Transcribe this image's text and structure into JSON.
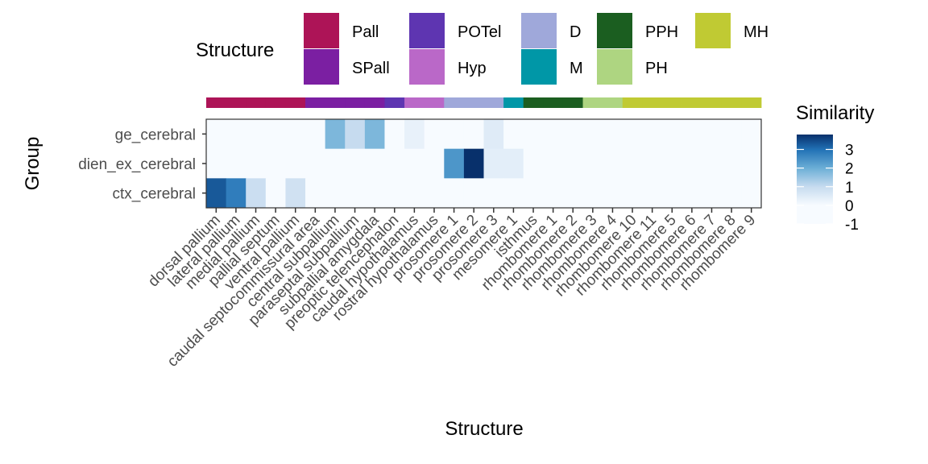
{
  "chart_data": {
    "type": "heatmap",
    "title": "",
    "xlabel": "Structure",
    "ylabel": "Group",
    "x_categories": [
      "dorsal pallium",
      "lateral pallium",
      "medial pallium",
      "pallial septum",
      "ventral pallium",
      "caudal septocommissural area",
      "central subpallium",
      "paraseptal subpallium",
      "subpallial amygdala",
      "preoptic telencephalon",
      "caudal hypothalamus",
      "rostral hypothalamus",
      "prosomere 1",
      "prosomere 2",
      "prosomere 3",
      "mesomere 1",
      "isthmus",
      "rhombomere 1",
      "rhombomere 2",
      "rhombomere 3",
      "rhombomere 4",
      "rhombomere 10",
      "rhombomere 11",
      "rhombomere 5",
      "rhombomere 6",
      "rhombomere 7",
      "rhombomere 8",
      "rhombomere 9"
    ],
    "y_categories": [
      "ge_cerebral",
      "dien_ex_cerebral",
      "ctx_cerebral"
    ],
    "values": [
      [
        0.0,
        -0.5,
        -0.8,
        -0.8,
        -0.2,
        -0.9,
        1.8,
        1.0,
        1.8,
        -0.3,
        0.3,
        -0.9,
        -0.9,
        -0.9,
        0.5,
        -1.0,
        -0.9,
        -0.8,
        -0.7,
        -0.6,
        -0.3,
        -0.7,
        -0.8,
        -0.4,
        -0.6,
        -0.6,
        -0.3,
        -0.3
      ],
      [
        -0.7,
        -0.8,
        -0.2,
        -0.6,
        -0.8,
        -0.4,
        -0.9,
        -0.5,
        -0.8,
        -0.5,
        -0.5,
        -1.0,
        2.4,
        3.8,
        0.4,
        0.4,
        -0.9,
        -0.8,
        -0.8,
        -0.7,
        -0.8,
        -0.5,
        -0.7,
        -0.8,
        -0.7,
        -0.7,
        -0.7,
        -0.7
      ],
      [
        3.3,
        2.8,
        0.9,
        -0.7,
        0.8,
        -1.0,
        -0.3,
        -0.5,
        -0.7,
        -0.7,
        -0.6,
        -0.8,
        -0.8,
        -0.8,
        -0.7,
        -0.8,
        -0.8,
        -0.8,
        -0.7,
        -0.7,
        -0.7,
        -0.3,
        -0.8,
        -0.8,
        -0.8,
        -0.8,
        -0.7,
        -0.5
      ]
    ],
    "structure_annotation": [
      "Pall",
      "Pall",
      "Pall",
      "Pall",
      "Pall",
      "SPall",
      "SPall",
      "SPall",
      "SPall",
      "POTel",
      "Hyp",
      "Hyp",
      "D",
      "D",
      "D",
      "M",
      "PPH",
      "PPH",
      "PPH",
      "PH",
      "PH",
      "MH",
      "MH",
      "MH",
      "MH",
      "MH",
      "MH",
      "MH"
    ],
    "structure_legend": {
      "title": "Structure",
      "entries": [
        {
          "label": "Pall",
          "color": "#AD1457"
        },
        {
          "label": "SPall",
          "color": "#7B1FA2"
        },
        {
          "label": "POTel",
          "color": "#5E35B1"
        },
        {
          "label": "Hyp",
          "color": "#BA68C8"
        },
        {
          "label": "D",
          "color": "#9FA8DA"
        },
        {
          "label": "M",
          "color": "#0097A7"
        },
        {
          "label": "PPH",
          "color": "#1B5E20"
        },
        {
          "label": "PH",
          "color": "#AED581"
        },
        {
          "label": "MH",
          "color": "#C0CA33"
        }
      ]
    },
    "color_legend": {
      "title": "Similarity",
      "ticks": [
        3,
        2,
        1,
        0,
        -1
      ],
      "range": [
        -1,
        3.8
      ]
    },
    "grid": false,
    "legend_placement": "top and right"
  }
}
